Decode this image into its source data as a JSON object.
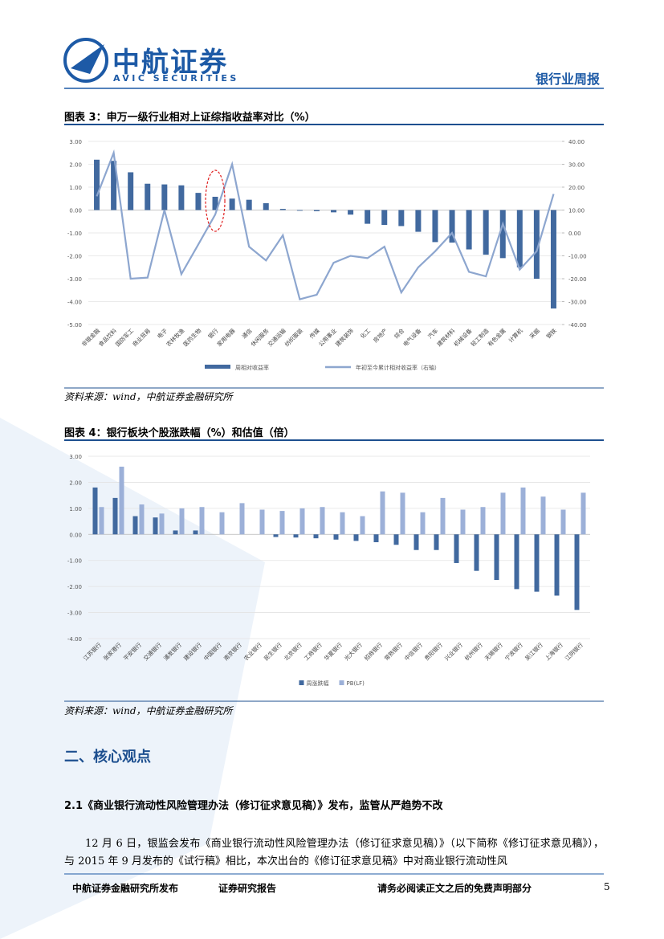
{
  "header": {
    "logo_cn": "中航证券",
    "logo_en": "AVIC SECURITIES",
    "report_type": "银行业周报"
  },
  "figure3": {
    "title": "图表 3：申万一级行业相对上证综指收益率对比（%）",
    "source": "资料来源：wind，中航证券金融研究所"
  },
  "figure4": {
    "title": "图表 4：银行板块个股涨跌幅（%）和估值（倍）",
    "source": "资料来源：wind，中航证券金融研究所"
  },
  "chart_data": [
    {
      "type": "bar",
      "categories": [
        "非银金融",
        "食品饮料",
        "国防军工",
        "商业贸易",
        "电子",
        "农林牧渔",
        "医药生物",
        "银行",
        "家用电器",
        "通信",
        "休闲服务",
        "交通运输",
        "纺织服装",
        "传媒",
        "公用事业",
        "建筑装饰",
        "化工",
        "房地产",
        "综合",
        "电气设备",
        "汽车",
        "建筑材料",
        "机械设备",
        "轻工制造",
        "有色金属",
        "计算机",
        "采掘",
        "钢铁"
      ],
      "series": [
        {
          "name": "周相对收益率",
          "type": "bar",
          "color": "#41699f",
          "values": [
            2.2,
            2.15,
            1.65,
            1.15,
            1.12,
            1.08,
            0.75,
            0.58,
            0.5,
            0.45,
            0.3,
            0.05,
            -0.03,
            -0.05,
            -0.1,
            -0.2,
            -0.6,
            -0.65,
            -0.7,
            -0.95,
            -1.4,
            -1.42,
            -1.72,
            -1.95,
            -2.1,
            -2.5,
            -3.0,
            -4.3
          ]
        },
        {
          "name": "年初至今累计相对收益率（右轴）",
          "type": "line",
          "axis": "y2",
          "color": "#8da6cf",
          "values": [
            16,
            35,
            -20,
            -19.5,
            10,
            -18,
            -5,
            8,
            30,
            -6,
            -12,
            -1,
            -29,
            -27,
            -13,
            -10,
            -11,
            -6,
            -26,
            -15,
            -8,
            0,
            -17,
            -19,
            4,
            -16,
            -8,
            17
          ]
        }
      ],
      "ylim": [
        -5,
        3
      ],
      "yticks": [
        {
          "value": 3,
          "label": "3.00"
        },
        {
          "value": 2,
          "label": "2.00"
        },
        {
          "value": 1,
          "label": "1.00"
        },
        {
          "value": 0,
          "label": "0.00"
        },
        {
          "value": -1,
          "label": "-1.00"
        },
        {
          "value": -2,
          "label": "-2.00"
        },
        {
          "value": -3,
          "label": "-3.00"
        },
        {
          "value": -4,
          "label": "-4.00"
        },
        {
          "value": -5,
          "label": "-5.00"
        }
      ],
      "y2lim": [
        -40,
        40
      ],
      "y2ticks": [
        {
          "value": 40,
          "label": "40.00"
        },
        {
          "value": 30,
          "label": "30.00"
        },
        {
          "value": 20,
          "label": "20.00"
        },
        {
          "value": 10,
          "label": "10.00"
        },
        {
          "value": 0,
          "label": "0.00"
        },
        {
          "value": -10,
          "label": "-10.00"
        },
        {
          "value": -20,
          "label": "-20.00"
        },
        {
          "value": -30,
          "label": "-30.00"
        },
        {
          "value": -40,
          "label": "-40.00"
        }
      ],
      "grid": true,
      "legend": "bottom"
    },
    {
      "type": "bar",
      "categories": [
        "江苏银行",
        "张家港行",
        "平安银行",
        "交通银行",
        "浦发银行",
        "建设银行",
        "中国银行",
        "南京银行",
        "农业银行",
        "民生银行",
        "北京银行",
        "工商银行",
        "华夏银行",
        "光大银行",
        "招商银行",
        "常熟银行",
        "中信银行",
        "贵阳银行",
        "兴业银行",
        "杭州银行",
        "无锡银行",
        "宁波银行",
        "吴江银行",
        "上海银行",
        "江阴银行"
      ],
      "series": [
        {
          "name": "周涨跌幅",
          "type": "bar",
          "color": "#41699f",
          "values": [
            1.8,
            1.4,
            0.7,
            0.65,
            0.15,
            0.15,
            0,
            0,
            0,
            -0.1,
            -0.12,
            -0.15,
            -0.2,
            -0.25,
            -0.3,
            -0.4,
            -0.6,
            -0.6,
            -1.1,
            -1.4,
            -1.75,
            -2.1,
            -2.2,
            -2.35,
            -2.9
          ]
        },
        {
          "name": "PB(LF)",
          "type": "bar",
          "color": "#9cb0d8",
          "values": [
            1.05,
            2.6,
            1.15,
            0.8,
            1.0,
            1.05,
            0.85,
            1.2,
            0.95,
            0.9,
            1.0,
            1.05,
            0.85,
            0.7,
            1.65,
            1.6,
            0.85,
            1.4,
            0.95,
            1.05,
            1.6,
            1.8,
            1.45,
            0.95,
            1.6
          ]
        }
      ],
      "ylim": [
        -4,
        3
      ],
      "yticks": [
        {
          "value": 3,
          "label": "3.00"
        },
        {
          "value": 2,
          "label": "2.00"
        },
        {
          "value": 1,
          "label": "1.00"
        },
        {
          "value": 0,
          "label": "0.00"
        },
        {
          "value": -1,
          "label": "-1.00"
        },
        {
          "value": -2,
          "label": "-2.00"
        },
        {
          "value": -3,
          "label": "-3.00"
        },
        {
          "value": -4,
          "label": "-4.00"
        }
      ],
      "grid": true,
      "legend": "bottom"
    }
  ],
  "section": {
    "heading": "二、核心观点",
    "subheading": "2.1《商业银行流动性风险管理办法（修订征求意见稿）》发布，监管从严趋势不改",
    "paragraph": "12 月 6 日，银监会发布《商业银行流动性风险管理办法（修订征求意见稿）》（以下简称《修订征求意见稿》），与 2015 年 9 月发布的《试行稿》相比，本次出台的《修订征求意见稿》中对商业银行流动性风"
  },
  "footer": {
    "publisher": "中航证券金融研究所发布",
    "report_kind": "证券研究报告",
    "disclaimer": "请务必阅读正文之后的免费声明部分",
    "page": "5"
  }
}
